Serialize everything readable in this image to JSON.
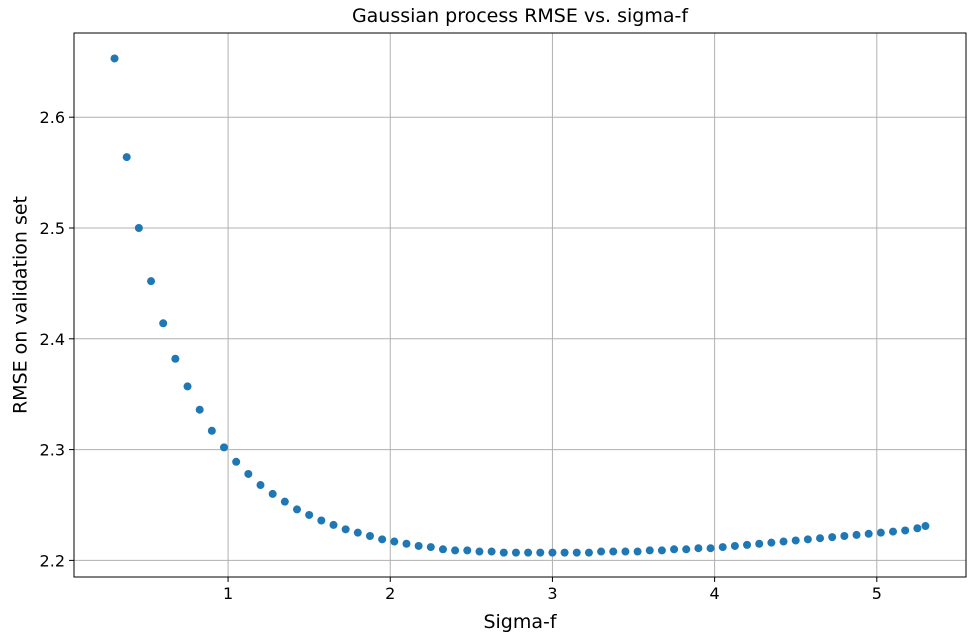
{
  "chart_data": {
    "type": "scatter",
    "title": "Gaussian process RMSE vs. sigma-f",
    "xlabel": "Sigma-f",
    "ylabel": "RMSE on validation set",
    "xlim": [
      0.05,
      5.55
    ],
    "ylim": [
      2.185,
      2.676
    ],
    "xticks": [
      1,
      2,
      3,
      4,
      5
    ],
    "yticks": [
      2.2,
      2.3,
      2.4,
      2.5,
      2.6
    ],
    "grid": true,
    "marker_color": "#1f77b4",
    "series": [
      {
        "x": [
          0.3,
          0.375,
          0.45,
          0.525,
          0.6,
          0.675,
          0.75,
          0.825,
          0.9,
          0.975,
          1.05,
          1.125,
          1.2,
          1.275,
          1.35,
          1.425,
          1.5,
          1.575,
          1.65,
          1.725,
          1.8,
          1.875,
          1.95,
          2.025,
          2.1,
          2.175,
          2.25,
          2.325,
          2.4,
          2.475,
          2.55,
          2.625,
          2.7,
          2.775,
          2.85,
          2.925,
          3.0,
          3.075,
          3.15,
          3.225,
          3.3,
          3.375,
          3.45,
          3.525,
          3.6,
          3.675,
          3.75,
          3.825,
          3.9,
          3.975,
          4.05,
          4.125,
          4.2,
          4.275,
          4.35,
          4.425,
          4.5,
          4.575,
          4.65,
          4.725,
          4.8,
          4.875,
          4.95,
          5.025,
          5.1,
          5.175,
          5.25,
          5.3
        ],
        "y": [
          2.653,
          2.564,
          2.5,
          2.452,
          2.414,
          2.382,
          2.357,
          2.336,
          2.317,
          2.302,
          2.289,
          2.278,
          2.268,
          2.26,
          2.253,
          2.246,
          2.241,
          2.236,
          2.232,
          2.228,
          2.225,
          2.222,
          2.219,
          2.217,
          2.215,
          2.213,
          2.212,
          2.21,
          2.209,
          2.209,
          2.208,
          2.208,
          2.207,
          2.207,
          2.207,
          2.207,
          2.207,
          2.207,
          2.207,
          2.207,
          2.208,
          2.208,
          2.208,
          2.208,
          2.209,
          2.209,
          2.21,
          2.21,
          2.211,
          2.211,
          2.212,
          2.213,
          2.214,
          2.215,
          2.216,
          2.217,
          2.218,
          2.219,
          2.22,
          2.221,
          2.222,
          2.223,
          2.224,
          2.225,
          2.226,
          2.227,
          2.229,
          2.231
        ]
      }
    ]
  }
}
